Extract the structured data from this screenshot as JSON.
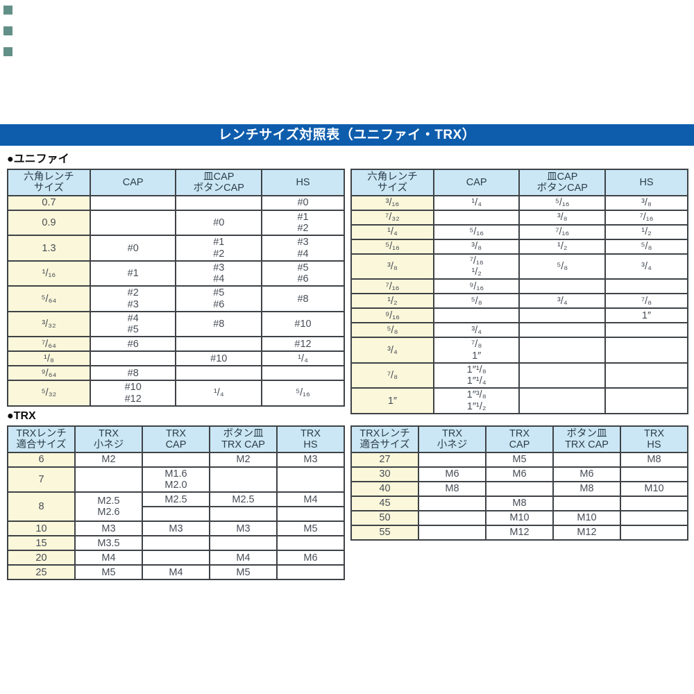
{
  "header": {
    "title": "レンチサイズ対照表（ユニファイ・TRX）"
  },
  "sections": {
    "unified_label": "●ユニファイ",
    "trx_label": "●TRX"
  },
  "colors": {
    "title_bar": "#0e5dad",
    "table_header_bg": "#cbe7f5",
    "size_column_bg": "#fbf7da",
    "border": "#3e4246"
  },
  "tables": {
    "unified_left": {
      "columns": [
        "六角レンチ\nサイズ",
        "CAP",
        "皿CAP\nボタンCAP",
        "HS"
      ],
      "rows": [
        [
          {
            "t": "0.7",
            "s": 1
          },
          "",
          "",
          "#0"
        ],
        [
          {
            "t": "0.9",
            "s": 1
          },
          "",
          "#0",
          "#1\n#2"
        ],
        [
          {
            "t": "1.3",
            "s": 1
          },
          "#0",
          "#1\n#2",
          "#3\n#4"
        ],
        [
          {
            "t": "¹/₁₆",
            "s": 1
          },
          "#1",
          "#3\n#4",
          "#5\n#6"
        ],
        [
          {
            "t": "⁵/₆₄",
            "s": 1
          },
          "#2\n#3",
          "#5\n#6",
          "#8"
        ],
        [
          {
            "t": "³/₃₂",
            "s": 1
          },
          "#4\n#5",
          "#8",
          "#10"
        ],
        [
          {
            "t": "⁷/₆₄",
            "s": 1
          },
          "#6",
          "",
          "#12"
        ],
        [
          {
            "t": "¹/₈",
            "s": 1
          },
          "",
          "#10",
          "¹/₄"
        ],
        [
          {
            "t": "⁹/₆₄",
            "s": 1
          },
          "#8",
          "",
          ""
        ],
        [
          {
            "t": "⁵/₃₂",
            "s": 1
          },
          "#10\n#12",
          "¹/₄",
          "⁵/₁₆"
        ]
      ]
    },
    "unified_right": {
      "columns": [
        "六角レンチ\nサイズ",
        "CAP",
        "皿CAP\nボタンCAP",
        "HS"
      ],
      "rows": [
        [
          {
            "t": "³/₁₆",
            "s": 1
          },
          "¹/₄",
          "⁵/₁₆",
          "³/₈"
        ],
        [
          {
            "t": "⁷/₃₂",
            "s": 1
          },
          "",
          "³/₈",
          "⁷/₁₆"
        ],
        [
          {
            "t": "¹/₄",
            "s": 1
          },
          "⁵/₁₆",
          "⁷/₁₆",
          "¹/₂"
        ],
        [
          {
            "t": "⁵/₁₆",
            "s": 1
          },
          "³/₈",
          "¹/₂",
          "⁵/₈"
        ],
        [
          {
            "t": "³/₈",
            "s": 1
          },
          "⁷/₁₆\n¹/₂",
          "⁵/₈",
          "³/₄"
        ],
        [
          {
            "t": "⁷/₁₆",
            "s": 1
          },
          "⁹/₁₆",
          "",
          ""
        ],
        [
          {
            "t": "¹/₂",
            "s": 1
          },
          "⁵/₈",
          "³/₄",
          "⁷/₈"
        ],
        [
          {
            "t": "⁹/₁₆",
            "s": 1
          },
          "",
          "",
          "1″"
        ],
        [
          {
            "t": "⁵/₈",
            "s": 1
          },
          "³/₄",
          "",
          ""
        ],
        [
          {
            "t": "³/₄",
            "s": 1
          },
          "⁷/₈\n1″",
          "",
          ""
        ],
        [
          {
            "t": "⁷/₈",
            "s": 1
          },
          "1″¹/₈\n1″¹/₄",
          "",
          ""
        ],
        [
          {
            "t": "1″",
            "s": 1
          },
          "1″³/₈\n1″¹/₂",
          "",
          ""
        ]
      ]
    },
    "trx_left": {
      "columns": [
        "TRXレンチ\n適合サイズ",
        "TRX\n小ネジ",
        "TRX\nCAP",
        "ボタン皿\nTRX CAP",
        "TRX\nHS"
      ],
      "rows": [
        [
          {
            "t": "6",
            "s": 1
          },
          "M2",
          "",
          "M2",
          "M3"
        ],
        [
          {
            "t": "7",
            "s": 1
          },
          "",
          "M1.6\nM2.0",
          "",
          ""
        ],
        [
          {
            "t": "8",
            "s": 1,
            "rs": 2
          },
          {
            "t": "M2.5\nM2.6",
            "rs": 2
          },
          "M2.5",
          "M2.5",
          "M4"
        ],
        [
          "",
          "",
          ""
        ],
        [
          {
            "t": "10",
            "s": 1
          },
          "M3",
          "M3",
          "M3",
          "M5"
        ],
        [
          {
            "t": "15",
            "s": 1
          },
          "M3.5",
          "",
          "",
          ""
        ],
        [
          {
            "t": "20",
            "s": 1
          },
          "M4",
          "",
          "M4",
          "M6"
        ],
        [
          {
            "t": "25",
            "s": 1
          },
          "M5",
          "M4",
          "M5",
          ""
        ]
      ]
    },
    "trx_right": {
      "columns": [
        "TRXレンチ\n適合サイズ",
        "TRX\n小ネジ",
        "TRX\nCAP",
        "ボタン皿\nTRX CAP",
        "TRX\nHS"
      ],
      "rows": [
        [
          {
            "t": "27",
            "s": 1
          },
          "",
          "M5",
          "",
          "M8"
        ],
        [
          {
            "t": "30",
            "s": 1
          },
          "M6",
          "M6",
          "M6",
          ""
        ],
        [
          {
            "t": "40",
            "s": 1
          },
          "M8",
          "",
          "M8",
          "M10"
        ],
        [
          {
            "t": "45",
            "s": 1
          },
          "",
          "M8",
          "",
          ""
        ],
        [
          {
            "t": "50",
            "s": 1
          },
          "",
          "M10",
          "M10",
          ""
        ],
        [
          {
            "t": "55",
            "s": 1
          },
          "",
          "M12",
          "M12",
          ""
        ]
      ]
    }
  }
}
